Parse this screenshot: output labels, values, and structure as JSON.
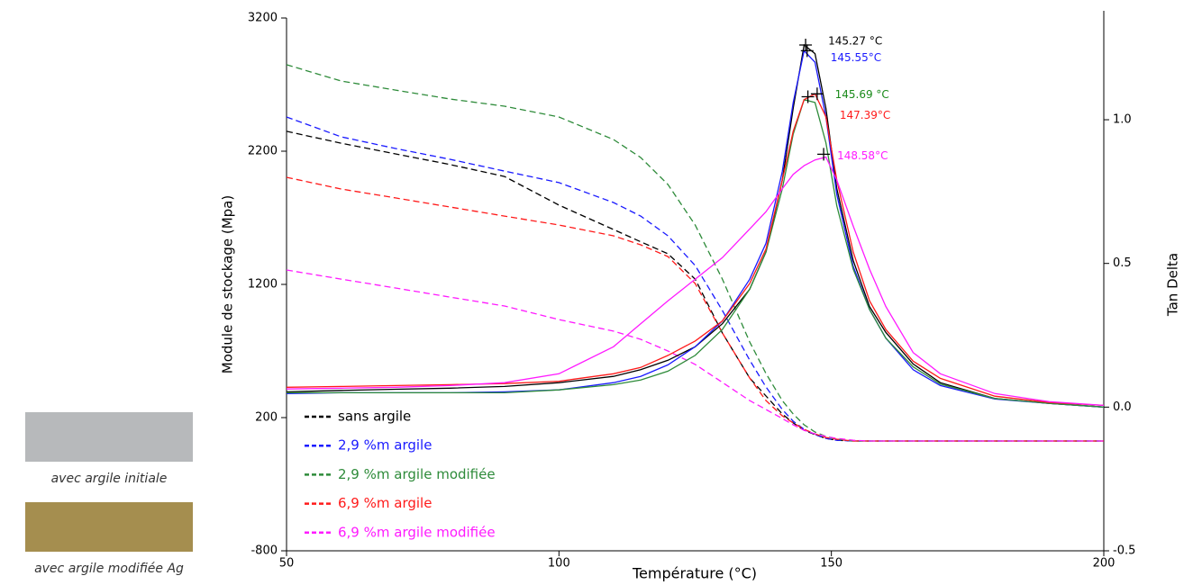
{
  "chart_data": {
    "type": "line",
    "xlabel": "Température (°C)",
    "ylabel": "Module de stockage (Mpa)",
    "y2label": "Tan Delta",
    "x": [
      50,
      60,
      70,
      80,
      90,
      100,
      110,
      115,
      120,
      125,
      130,
      135,
      138,
      141,
      143,
      145,
      147,
      149,
      151,
      154,
      157,
      160,
      165,
      170,
      180,
      190,
      200
    ],
    "xlim": [
      50,
      200
    ],
    "xticks": [
      50,
      100,
      150,
      200
    ],
    "ylim": [
      -800,
      3200
    ],
    "yticks": [
      -800,
      200,
      1200,
      2200,
      3200
    ],
    "y2lim": [
      -0.5,
      1.354
    ],
    "y2ticks": [
      -0.5,
      {
        "value": 0,
        "label": "0.0"
      },
      0.5,
      {
        "value": 1,
        "label": "1.0"
      }
    ],
    "series": [
      {
        "name": "sans argile",
        "color": "#000000",
        "dashed": true,
        "values": [
          2349,
          2260,
          2180,
          2100,
          2010,
          1795,
          1612,
          1520,
          1430,
          1240,
          835,
          497,
          362,
          227,
          160,
          105,
          72,
          44,
          30,
          24,
          24,
          24,
          24,
          24,
          24,
          24,
          24
        ]
      },
      {
        "name": "2,9 %m argile",
        "color": "#1a1aff",
        "dashed": true,
        "values": [
          2457,
          2308,
          2220,
          2139,
          2051,
          1964,
          1815,
          1713,
          1565,
          1342,
          1004,
          632,
          430,
          261,
          173,
          112,
          72,
          44,
          30,
          24,
          24,
          24,
          24,
          24,
          24,
          24,
          24
        ]
      },
      {
        "name": "2,9 %m argile modifiée",
        "color": "#2e8b3a",
        "dashed": true,
        "values": [
          2849,
          2727,
          2659,
          2592,
          2538,
          2457,
          2288,
          2153,
          1950,
          1646,
          1240,
          768,
          531,
          328,
          227,
          146,
          92,
          59,
          38,
          24,
          24,
          24,
          24,
          24,
          24,
          24,
          24
        ]
      },
      {
        "name": "6,9 %m argile",
        "color": "#ff1a1a",
        "dashed": true,
        "values": [
          2004,
          1916,
          1849,
          1781,
          1713,
          1646,
          1565,
          1497,
          1409,
          1207,
          835,
          497,
          328,
          213,
          160,
          112,
          78,
          51,
          38,
          24,
          24,
          24,
          24,
          24,
          24,
          24,
          24
        ]
      },
      {
        "name": "6,9 %m argile modifiée",
        "color": "#ff1aff",
        "dashed": true,
        "values": [
          1308,
          1240,
          1173,
          1105,
          1038,
          936,
          849,
          788,
          700,
          599,
          464,
          328,
          261,
          193,
          146,
          105,
          78,
          59,
          44,
          30,
          24,
          24,
          24,
          24,
          24,
          24,
          24
        ]
      },
      {
        "color": "#000000",
        "axis": "y2",
        "values": [
          0.053,
          0.058,
          0.062,
          0.066,
          0.072,
          0.085,
          0.107,
          0.13,
          0.163,
          0.21,
          0.29,
          0.41,
          0.54,
          0.79,
          1.04,
          1.26,
          1.23,
          1.04,
          0.76,
          0.51,
          0.35,
          0.26,
          0.15,
          0.085,
          0.03,
          0.013,
          0
        ]
      },
      {
        "color": "#1a1aff",
        "axis": "y2",
        "values": [
          0.047,
          0.05,
          0.05,
          0.05,
          0.053,
          0.06,
          0.085,
          0.107,
          0.147,
          0.21,
          0.3,
          0.445,
          0.57,
          0.82,
          1.06,
          1.24,
          1.2,
          1.01,
          0.74,
          0.49,
          0.34,
          0.24,
          0.13,
          0.075,
          0.028,
          0.013,
          0
        ]
      },
      {
        "color": "#2e8b3a",
        "axis": "y2",
        "values": [
          0.05,
          0.05,
          0.05,
          0.05,
          0.05,
          0.06,
          0.078,
          0.094,
          0.125,
          0.18,
          0.27,
          0.41,
          0.54,
          0.76,
          0.95,
          1.07,
          1.06,
          0.92,
          0.7,
          0.48,
          0.34,
          0.24,
          0.14,
          0.08,
          0.03,
          0.013,
          0
        ]
      },
      {
        "color": "#ff1a1a",
        "axis": "y2",
        "values": [
          0.069,
          0.072,
          0.075,
          0.078,
          0.082,
          0.09,
          0.116,
          0.138,
          0.18,
          0.23,
          0.3,
          0.43,
          0.55,
          0.79,
          0.96,
          1.07,
          1.09,
          1.01,
          0.79,
          0.54,
          0.37,
          0.27,
          0.16,
          0.1,
          0.038,
          0.016,
          0.006
        ]
      },
      {
        "color": "#ff1aff",
        "axis": "y2",
        "values": [
          0.063,
          0.066,
          0.069,
          0.075,
          0.085,
          0.116,
          0.21,
          0.29,
          0.37,
          0.445,
          0.52,
          0.62,
          0.68,
          0.76,
          0.81,
          0.84,
          0.86,
          0.87,
          0.79,
          0.63,
          0.48,
          0.35,
          0.19,
          0.116,
          0.047,
          0.019,
          0.006
        ]
      }
    ],
    "annotations": [
      {
        "text": "145.27 °C",
        "x": 145.27,
        "y": 1.26,
        "color": "#000000"
      },
      {
        "text": "145.55°C",
        "x": 145.55,
        "y": 1.24,
        "color": "#1a1aff"
      },
      {
        "text": "145.69 °C",
        "x": 145.69,
        "y": 1.08,
        "color": "#1a8a1a"
      },
      {
        "text": "147.39°C",
        "x": 147.39,
        "y": 1.09,
        "color": "#ff1a1a"
      },
      {
        "text": "148.58°C",
        "x": 148.58,
        "y": 0.88,
        "color": "#ff1aff"
      }
    ]
  },
  "samples": [
    {
      "label": "avec argile initiale",
      "color": "#b7b9bb"
    },
    {
      "label": "avec argile modifiée Ag",
      "color": "#a58e4f"
    }
  ]
}
